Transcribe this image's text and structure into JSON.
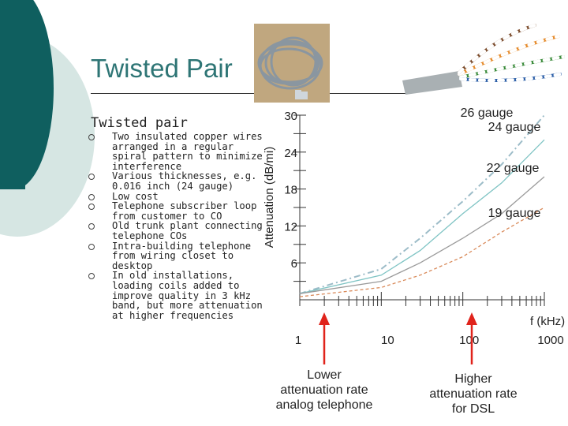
{
  "slide": {
    "title": "Twisted Pair",
    "subtitle": "Twisted pair",
    "bullets": [
      "Two insulated copper wires arranged in a regular spiral pattern to minimize interference",
      "Various thicknesses, e.g. 0.016 inch (24 gauge)",
      "Low cost",
      "Telephone subscriber loop from customer to CO",
      "Old trunk plant connecting telephone COs",
      "Intra-building telephone from wiring closet to desktop",
      "In old installations, loading coils added to improve quality in 3 kHz band, but more attenuation at higher frequencies"
    ],
    "callouts": {
      "lower": [
        "Lower",
        "attenuation rate",
        "analog telephone"
      ],
      "higher": [
        "Higher",
        "attenuation rate",
        "for DSL"
      ]
    },
    "colors": {
      "accent": "#2e7575",
      "dark_teal": "#0f5f5f",
      "light_teal": "#d6e6e3",
      "arrow": "#e0231b"
    },
    "icons": [
      "cable-coil-photo",
      "cable-end-photo",
      "up-arrow-icon",
      "bullet-circle-icon"
    ]
  },
  "chart_data": {
    "type": "line",
    "ylabel": "Attenuation (dB/mi)",
    "xlabel": "f (kHz)",
    "x_scale": "log",
    "xlim": [
      1,
      1000
    ],
    "ylim": [
      0,
      30
    ],
    "y_ticks": [
      6,
      12,
      18,
      24,
      30
    ],
    "x_ticks": [
      1,
      10,
      100,
      1000
    ],
    "series": [
      {
        "name": "26 gauge",
        "style": "dash-dot",
        "color": "#9cbcc8",
        "x": [
          1,
          10,
          30,
          100,
          300,
          1000
        ],
        "y": [
          1,
          5,
          10,
          16,
          22,
          30
        ]
      },
      {
        "name": "24 gauge",
        "style": "solid",
        "color": "#7fc4c4",
        "x": [
          1,
          10,
          30,
          100,
          300,
          1000
        ],
        "y": [
          1,
          4,
          8,
          14,
          19,
          26
        ]
      },
      {
        "name": "22 gauge",
        "style": "solid",
        "color": "#9a9a9a",
        "x": [
          1,
          10,
          30,
          100,
          300,
          1000
        ],
        "y": [
          1,
          3,
          6,
          10,
          14,
          20
        ]
      },
      {
        "name": "19 gauge",
        "style": "dashed",
        "color": "#d98a5a",
        "x": [
          1,
          10,
          30,
          100,
          300,
          1000
        ],
        "y": [
          0.5,
          2,
          4,
          7,
          11,
          15
        ]
      }
    ]
  }
}
